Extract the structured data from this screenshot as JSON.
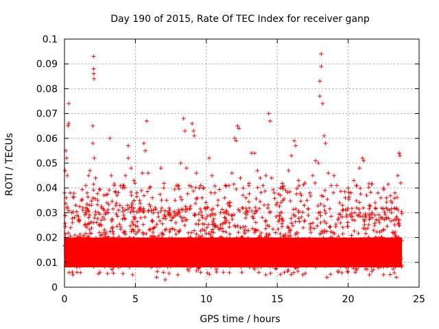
{
  "chart_data": {
    "type": "scatter",
    "title": "Day 190 of 2015, Rate Of TEC Index for receiver ganp",
    "xlabel": "GPS time / hours",
    "ylabel": "ROTI / TECUs",
    "xlim": [
      0,
      25
    ],
    "ylim": [
      0,
      0.1
    ],
    "x_ticks": [
      "0",
      "5",
      "10",
      "15",
      "20",
      "25"
    ],
    "x_tick_values": [
      0,
      5,
      10,
      15,
      20,
      25
    ],
    "y_ticks": [
      "0",
      "0.01",
      "0.02",
      "0.03",
      "0.04",
      "0.05",
      "0.06",
      "0.07",
      "0.08",
      "0.09",
      "0.1"
    ],
    "y_tick_values": [
      0,
      0.01,
      0.02,
      0.03,
      0.04,
      0.05,
      0.06,
      0.07,
      0.08,
      0.09,
      0.1
    ],
    "grid": true,
    "marker": "plus",
    "color": "#ff0000",
    "background_band": {
      "x_range": [
        0,
        23.8
      ],
      "y_range": [
        0.008,
        0.02
      ]
    },
    "series": [
      {
        "values": [
          [
            0.05,
            0.047
          ],
          [
            0.1,
            0.055
          ],
          [
            0.15,
            0.052
          ],
          [
            0.2,
            0.045
          ],
          [
            0.25,
            0.065
          ],
          [
            0.3,
            0.074
          ],
          [
            0.3,
            0.066
          ],
          [
            0.4,
            0.038
          ],
          [
            0.5,
            0.03
          ],
          [
            0.7,
            0.028
          ],
          [
            0.8,
            0.033
          ],
          [
            1.0,
            0.027
          ],
          [
            1.2,
            0.035
          ],
          [
            1.3,
            0.032
          ],
          [
            1.5,
            0.041
          ],
          [
            1.6,
            0.038
          ],
          [
            1.7,
            0.045
          ],
          [
            1.8,
            0.047
          ],
          [
            1.9,
            0.033
          ],
          [
            2.0,
            0.065
          ],
          [
            2.0,
            0.058
          ],
          [
            2.05,
            0.093
          ],
          [
            2.05,
            0.088
          ],
          [
            2.07,
            0.086
          ],
          [
            2.08,
            0.084
          ],
          [
            2.1,
            0.052
          ],
          [
            2.2,
            0.044
          ],
          [
            2.4,
            0.03
          ],
          [
            2.6,
            0.027
          ],
          [
            2.8,
            0.031
          ],
          [
            3.0,
            0.034
          ],
          [
            3.2,
            0.06
          ],
          [
            3.3,
            0.045
          ],
          [
            3.5,
            0.041
          ],
          [
            3.7,
            0.037
          ],
          [
            3.9,
            0.033
          ],
          [
            4.1,
            0.04
          ],
          [
            4.3,
            0.045
          ],
          [
            4.5,
            0.057
          ],
          [
            4.5,
            0.052
          ],
          [
            4.7,
            0.048
          ],
          [
            4.9,
            0.043
          ],
          [
            5.1,
            0.038
          ],
          [
            5.3,
            0.035
          ],
          [
            5.5,
            0.046
          ],
          [
            5.6,
            0.058
          ],
          [
            5.7,
            0.055
          ],
          [
            5.8,
            0.067
          ],
          [
            5.9,
            0.046
          ],
          [
            6.0,
            0.04
          ],
          [
            6.2,
            0.036
          ],
          [
            6.4,
            0.032
          ],
          [
            6.6,
            0.03
          ],
          [
            6.8,
            0.048
          ],
          [
            7.0,
            0.04
          ],
          [
            7.2,
            0.035
          ],
          [
            7.4,
            0.029
          ],
          [
            7.6,
            0.028
          ],
          [
            7.8,
            0.035
          ],
          [
            8.0,
            0.041
          ],
          [
            8.2,
            0.05
          ],
          [
            8.4,
            0.068
          ],
          [
            8.5,
            0.063
          ],
          [
            8.6,
            0.048
          ],
          [
            8.8,
            0.041
          ],
          [
            9.0,
            0.066
          ],
          [
            9.1,
            0.063
          ],
          [
            9.15,
            0.061
          ],
          [
            9.3,
            0.046
          ],
          [
            9.5,
            0.04
          ],
          [
            9.7,
            0.036
          ],
          [
            9.9,
            0.032
          ],
          [
            10.2,
            0.052
          ],
          [
            10.4,
            0.045
          ],
          [
            10.6,
            0.038
          ],
          [
            10.8,
            0.033
          ],
          [
            11.0,
            0.03
          ],
          [
            11.3,
            0.036
          ],
          [
            11.6,
            0.041
          ],
          [
            11.8,
            0.046
          ],
          [
            12.0,
            0.06
          ],
          [
            12.1,
            0.059
          ],
          [
            12.2,
            0.065
          ],
          [
            12.3,
            0.064
          ],
          [
            12.4,
            0.044
          ],
          [
            12.6,
            0.04
          ],
          [
            12.8,
            0.036
          ],
          [
            13.0,
            0.041
          ],
          [
            13.2,
            0.054
          ],
          [
            13.4,
            0.054
          ],
          [
            13.6,
            0.047
          ],
          [
            13.8,
            0.044
          ],
          [
            14.0,
            0.041
          ],
          [
            14.2,
            0.045
          ],
          [
            14.4,
            0.07
          ],
          [
            14.5,
            0.067
          ],
          [
            14.6,
            0.044
          ],
          [
            14.8,
            0.038
          ],
          [
            15.0,
            0.034
          ],
          [
            15.2,
            0.03
          ],
          [
            15.4,
            0.035
          ],
          [
            15.6,
            0.039
          ],
          [
            15.8,
            0.047
          ],
          [
            16.0,
            0.053
          ],
          [
            16.2,
            0.059
          ],
          [
            16.3,
            0.057
          ],
          [
            16.5,
            0.043
          ],
          [
            16.7,
            0.037
          ],
          [
            16.9,
            0.033
          ],
          [
            17.1,
            0.035
          ],
          [
            17.3,
            0.038
          ],
          [
            17.5,
            0.045
          ],
          [
            17.7,
            0.051
          ],
          [
            17.9,
            0.05
          ],
          [
            18.0,
            0.083
          ],
          [
            18.0,
            0.077
          ],
          [
            18.1,
            0.094
          ],
          [
            18.1,
            0.089
          ],
          [
            18.2,
            0.074
          ],
          [
            18.3,
            0.061
          ],
          [
            18.4,
            0.058
          ],
          [
            18.6,
            0.046
          ],
          [
            18.8,
            0.041
          ],
          [
            19.0,
            0.045
          ],
          [
            19.2,
            0.041
          ],
          [
            19.4,
            0.034
          ],
          [
            19.6,
            0.033
          ],
          [
            19.8,
            0.036
          ],
          [
            20.0,
            0.04
          ],
          [
            20.2,
            0.038
          ],
          [
            20.4,
            0.043
          ],
          [
            20.6,
            0.041
          ],
          [
            20.8,
            0.048
          ],
          [
            21.0,
            0.052
          ],
          [
            21.1,
            0.051
          ],
          [
            21.3,
            0.037
          ],
          [
            21.5,
            0.033
          ],
          [
            21.7,
            0.03
          ],
          [
            21.9,
            0.034
          ],
          [
            22.1,
            0.038
          ],
          [
            22.3,
            0.036
          ],
          [
            22.5,
            0.04
          ],
          [
            22.7,
            0.036
          ],
          [
            22.9,
            0.031
          ],
          [
            23.1,
            0.034
          ],
          [
            23.3,
            0.038
          ],
          [
            23.5,
            0.045
          ],
          [
            23.6,
            0.054
          ],
          [
            23.65,
            0.053
          ],
          [
            23.7,
            0.042
          ],
          [
            0.6,
            0.005
          ],
          [
            2.5,
            0.006
          ],
          [
            4.8,
            0.005
          ],
          [
            6.5,
            0.004
          ],
          [
            7.1,
            0.003
          ],
          [
            8.0,
            0.005
          ],
          [
            9.6,
            0.006
          ],
          [
            11.2,
            0.006
          ],
          [
            12.5,
            0.006
          ],
          [
            14.2,
            0.005
          ],
          [
            15.5,
            0.006
          ],
          [
            16.8,
            0.005
          ],
          [
            18.5,
            0.004
          ],
          [
            19.3,
            0.006
          ],
          [
            20.5,
            0.006
          ],
          [
            21.5,
            0.005
          ],
          [
            22.5,
            0.005
          ],
          [
            23.4,
            0.004
          ]
        ]
      }
    ]
  }
}
